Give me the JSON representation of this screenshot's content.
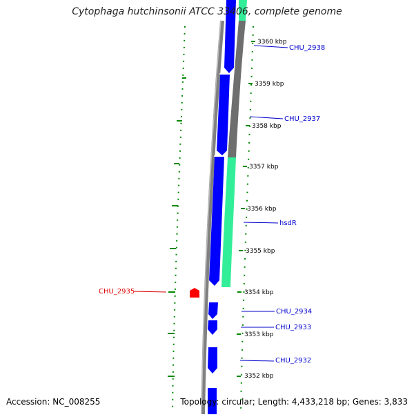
{
  "map": {
    "title": "Cytophaga hutchinsonii ATCC 33406, complete genome",
    "accession": "Accession: NC_008255",
    "summary": "Topology: circular; Length: 4,433,218 bp; Genes: 3,833"
  },
  "ruler": {
    "ticks": [
      {
        "label": "3360 kbp",
        "kbp": 3360
      },
      {
        "label": "3359 kbp",
        "kbp": 3359
      },
      {
        "label": "3358 kbp",
        "kbp": 3358
      },
      {
        "label": "3357 kbp",
        "kbp": 3357
      },
      {
        "label": "3356 kbp",
        "kbp": 3356
      },
      {
        "label": "3355 kbp",
        "kbp": 3355
      },
      {
        "label": "3354 kbp",
        "kbp": 3354
      },
      {
        "label": "3353 kbp",
        "kbp": 3353
      },
      {
        "label": "3352 kbp",
        "kbp": 3352
      }
    ]
  },
  "genes": [
    {
      "label": "CHU_2938",
      "color": "#0000cc"
    },
    {
      "label": "CHU_2937",
      "color": "#0000cc"
    },
    {
      "label": "hsdR",
      "color": "#0000cc"
    },
    {
      "label": "CHU_2935",
      "color": "#dd0000"
    },
    {
      "label": "CHU_2934",
      "color": "#0000cc"
    },
    {
      "label": "CHU_2933",
      "color": "#0000cc"
    },
    {
      "label": "CHU_2932",
      "color": "#0000cc"
    }
  ],
  "colors": {
    "forward_strand_genes": "#0000ff",
    "reverse_strand_gene": "#ff0000",
    "feature_green": "#33ee99",
    "feature_gray": "#808080",
    "backbone": "#808080",
    "skew_dots": "#008800"
  }
}
